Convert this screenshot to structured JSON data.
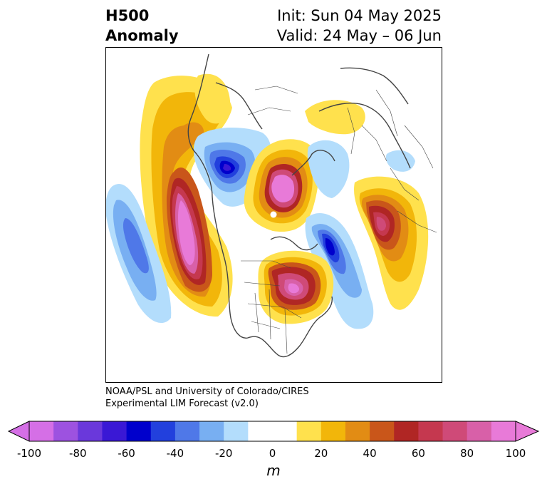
{
  "title": {
    "field": "H500",
    "kind": "Anomaly",
    "init": "Init: Sun 04 May 2025",
    "valid": "Valid: 24 May – 06 Jun"
  },
  "credit": {
    "line1": "NOAA/PSL and University of Colorado/CIRES",
    "line2": "Experimental LIM Forecast (v2.0)"
  },
  "colorbar": {
    "unit": "m",
    "tick_labels": [
      "-100",
      "-80",
      "-60",
      "-40",
      "-20",
      "0",
      "20",
      "40",
      "60",
      "80",
      "100"
    ],
    "colors": [
      "#d56fe6",
      "#9d52e0",
      "#6a38db",
      "#3a18d5",
      "#0000cc",
      "#2240dd",
      "#4f78e8",
      "#78aff2",
      "#b3ddfc",
      "#ffffff",
      "#ffffff",
      "#ffe14d",
      "#f2b60a",
      "#e28c14",
      "#c9561a",
      "#b02624",
      "#c5384f",
      "#cf4a78",
      "#d860a8",
      "#e87ad8"
    ]
  },
  "map": {
    "projection": "north polar stereographic",
    "anomalies": [
      {
        "label": "NE Pacific / W North America ridge",
        "sign": "positive",
        "peak_m": 100
      },
      {
        "label": "Central Pacific trough",
        "sign": "negative",
        "peak_m": -50
      },
      {
        "label": "NE Asia trough",
        "sign": "negative",
        "peak_m": -70
      },
      {
        "label": "Arctic ridge",
        "sign": "positive",
        "peak_m": 100
      },
      {
        "label": "Eastern Canada ridge",
        "sign": "positive",
        "peak_m": 100
      },
      {
        "label": "N Atlantic trough",
        "sign": "negative",
        "peak_m": -70
      },
      {
        "label": "Europe ridge",
        "sign": "positive",
        "peak_m": 70
      }
    ]
  }
}
